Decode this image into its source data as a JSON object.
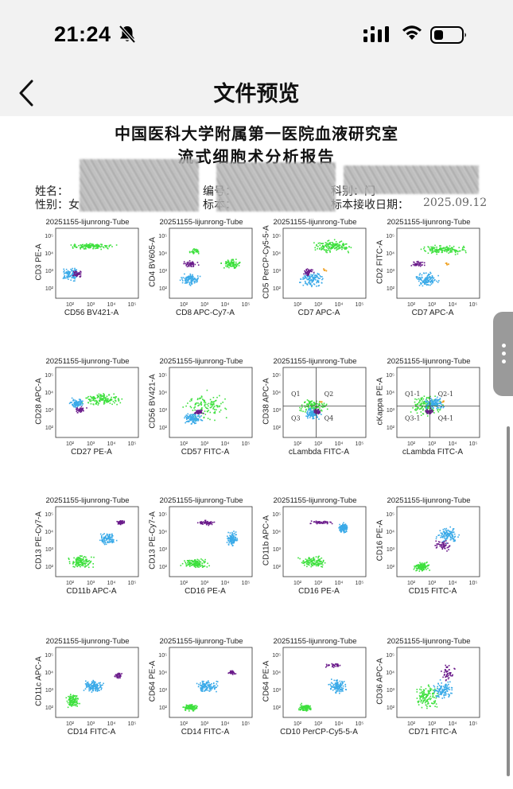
{
  "status_bar": {
    "time": "21:24",
    "bell_icon": "bell-muted-icon",
    "signal_icon": "cellular-signal-icon",
    "wifi_icon": "wifi-icon",
    "battery_icon": "battery-icon"
  },
  "nav": {
    "title": "文件预览",
    "back_icon": "chevron-left-icon"
  },
  "document": {
    "title_line1": "中国医科大学附属第一医院血液研究室",
    "title_line2": "流式细胞术分析报告",
    "fields": {
      "name_label": "姓名：",
      "id_label": "编号：",
      "dept_label": "科别：门",
      "sex_label": "性别：女",
      "specimen_label": "标本：",
      "received_label": "标本接收日期：",
      "received_tail": "2025.09.12"
    },
    "plots": [
      {
        "tube": "20251155-lijunrong-Tube",
        "x_label": "CD56 BV421-A",
        "y_label": "CD3 PE-A"
      },
      {
        "tube": "20251155-lijunrong-Tube",
        "x_label": "CD8 APC-Cy7-A",
        "y_label": "CD4 BV605-A"
      },
      {
        "tube": "20251155-lijunrong-Tube",
        "x_label": "CD7 APC-A",
        "y_label": "CD5 PerCP-Cy5-5-A"
      },
      {
        "tube": "20251155-lijunrong-Tube",
        "x_label": "CD7 APC-A",
        "y_label": "CD2 FITC-A"
      },
      {
        "tube": "20251155-lijunrong-Tube",
        "x_label": "CD27 PE-A",
        "y_label": "CD28 APC-A"
      },
      {
        "tube": "20251155-lijunrong-Tube",
        "x_label": "CD57 FITC-A",
        "y_label": "CD56 BV421-A"
      },
      {
        "tube": "20251155-lijunrong-Tube",
        "x_label": "cLambda FITC-A",
        "y_label": "CD38 APC-A",
        "quadrants": [
          "Q1",
          "Q2",
          "Q3",
          "Q4"
        ]
      },
      {
        "tube": "20251155-lijunrong-Tube",
        "x_label": "cLambda FITC-A",
        "y_label": "cKappa PE-A",
        "quadrants": [
          "Q1-1",
          "Q2-1",
          "Q3-1",
          "Q4-1"
        ]
      },
      {
        "tube": "20251155-lijunrong-Tube",
        "x_label": "CD11b APC-A",
        "y_label": "CD13 PE-Cy7-A"
      },
      {
        "tube": "20251155-lijunrong-Tube",
        "x_label": "CD16 PE-A",
        "y_label": "CD13 PE-Cy7-A"
      },
      {
        "tube": "20251155-lijunrong-Tube",
        "x_label": "CD16 PE-A",
        "y_label": "CD11b APC-A"
      },
      {
        "tube": "20251155-lijunrong-Tube",
        "x_label": "CD15 FITC-A",
        "y_label": "CD16 PE-A"
      },
      {
        "tube": "20251155-lijunrong-Tube",
        "x_label": "CD14 FITC-A",
        "y_label": "CD11c APC-A"
      },
      {
        "tube": "20251155-lijunrong-Tube",
        "x_label": "CD14 FITC-A",
        "y_label": "CD64 PE-A"
      },
      {
        "tube": "20251155-lijunrong-Tube",
        "x_label": "CD10 PerCP-Cy5-5-A",
        "y_label": "CD64 PE-A"
      },
      {
        "tube": "20251155-lijunrong-Tube",
        "x_label": "CD71 FITC-A",
        "y_label": "CD36 APC-A"
      }
    ],
    "tick_labels": [
      "10²",
      "10³",
      "10⁴",
      "10⁵"
    ],
    "colors": {
      "green": "#3de03d",
      "blue": "#3aaae8",
      "purple": "#6a1a8a",
      "orange": "#f0a020"
    }
  },
  "side_handle": {
    "icon": "more-vertical-icon"
  }
}
